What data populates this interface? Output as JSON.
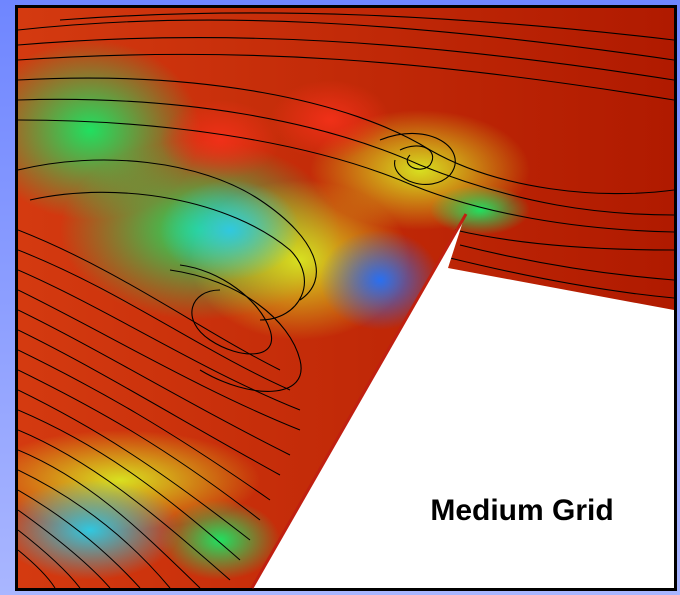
{
  "label": "Medium Grid"
}
